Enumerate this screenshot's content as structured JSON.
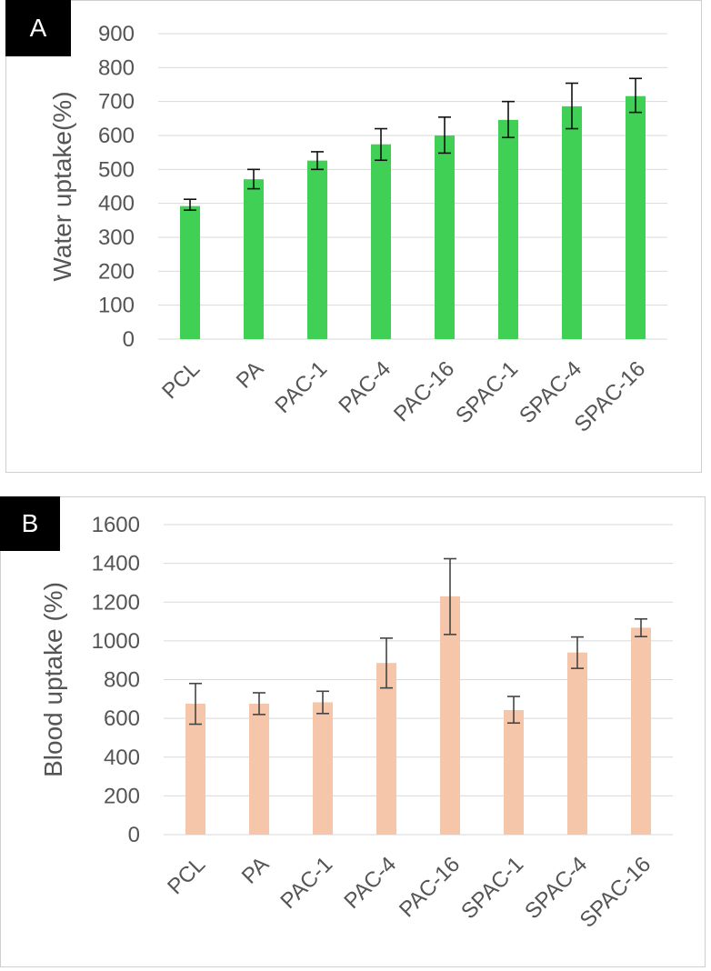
{
  "chart_data": [
    {
      "panel_label": "A",
      "type": "bar",
      "ylabel": "Water uptake(%)",
      "xlabel": "",
      "ylim": [
        0,
        900
      ],
      "yticks": [
        0,
        100,
        200,
        300,
        400,
        500,
        600,
        700,
        800,
        900
      ],
      "grid": true,
      "bar_color": "#41d056",
      "categories": [
        "PCL",
        "PA",
        "PAC-1",
        "PAC-4",
        "PAC-16",
        "SPAC-1",
        "SPAC-4",
        "SPAC-16"
      ],
      "values": [
        392,
        471,
        526,
        574,
        600,
        646,
        686,
        716
      ],
      "error_low": [
        380,
        443,
        500,
        527,
        548,
        594,
        620,
        668
      ],
      "error_high": [
        412,
        500,
        552,
        620,
        654,
        700,
        754,
        768
      ]
    },
    {
      "panel_label": "B",
      "type": "bar",
      "ylabel": "Blood uptake (%)",
      "xlabel": "",
      "ylim": [
        0,
        1600
      ],
      "yticks": [
        0,
        200,
        400,
        600,
        800,
        1000,
        1200,
        1400,
        1600
      ],
      "grid": true,
      "bar_color": "#f5c6aa",
      "categories": [
        "PCL",
        "PA",
        "PAC-1",
        "PAC-4",
        "PAC-16",
        "SPAC-1",
        "SPAC-4",
        "SPAC-16"
      ],
      "values": [
        676,
        676,
        683,
        886,
        1230,
        643,
        940,
        1068
      ],
      "error_low": [
        570,
        620,
        625,
        757,
        1033,
        576,
        858,
        1022
      ],
      "error_high": [
        780,
        732,
        740,
        1014,
        1424,
        713,
        1020,
        1113
      ]
    }
  ]
}
